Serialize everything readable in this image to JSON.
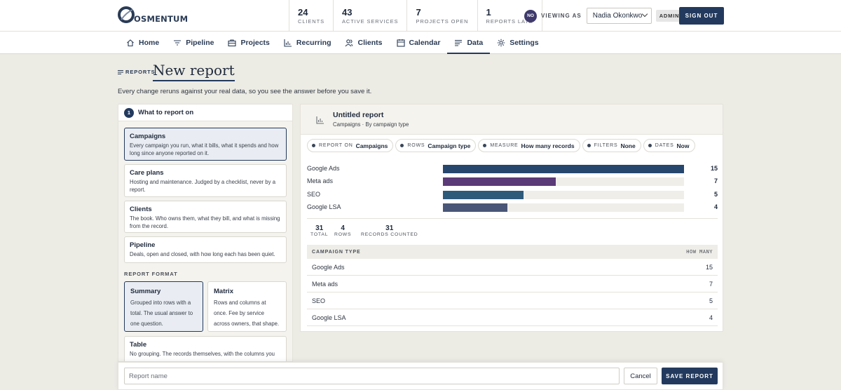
{
  "brand": {
    "name": "OSMENTUM"
  },
  "stats": [
    {
      "num": "24",
      "label": "CLIENTS"
    },
    {
      "num": "43",
      "label": "ACTIVE SERVICES"
    },
    {
      "num": "7",
      "label": "PROJECTS OPEN"
    },
    {
      "num": "1",
      "label": "REPORTS LATE"
    }
  ],
  "viewer": {
    "initials": "NO",
    "label": "VIEWING AS",
    "selected": "Nadia Okonkwo",
    "role_badge": "ADMIN",
    "signout_label": "SIGN OUT"
  },
  "nav": [
    {
      "label": "Home",
      "icon": "home-icon"
    },
    {
      "label": "Pipeline",
      "icon": "filter-icon"
    },
    {
      "label": "Projects",
      "icon": "briefcase-icon"
    },
    {
      "label": "Recurring",
      "icon": "bar-chart-icon"
    },
    {
      "label": "Clients",
      "icon": "users-icon"
    },
    {
      "label": "Calendar",
      "icon": "calendar-icon"
    },
    {
      "label": "Data",
      "icon": "list-icon",
      "active": true
    },
    {
      "label": "Settings",
      "icon": "gear-icon"
    }
  ],
  "page": {
    "breadcrumb": "REPORTS",
    "title": "New report",
    "subtitle": "Every change reruns against your real data, so you see the answer before you save it."
  },
  "builder": {
    "step_number": "1",
    "step_title": "What to report on",
    "sources": [
      {
        "title": "Campaigns",
        "desc": "Every campaign you run, what it bills, what it spends and how long since anyone reported on it.",
        "selected": true
      },
      {
        "title": "Care plans",
        "desc": "Hosting and maintenance. Judged by a checklist, never by a report."
      },
      {
        "title": "Clients",
        "desc": "The book. Who owns them, what they bill, and what is missing from the record."
      },
      {
        "title": "Pipeline",
        "desc": "Deals, open and closed, with how long each has been quiet."
      }
    ],
    "format_label": "REPORT FORMAT",
    "formats": [
      {
        "title": "Summary",
        "desc": "Grouped into rows with a total. The usual answer to one question.",
        "selected": true
      },
      {
        "title": "Matrix",
        "desc": "Rows and columns at once. Fee by service across owners, that shape."
      },
      {
        "title": "Table",
        "desc": "No grouping. The records themselves, with the columns you"
      }
    ]
  },
  "preview": {
    "title": "Untitled report",
    "subtitle": "Campaigns · By campaign type",
    "chips": [
      {
        "key": "REPORT ON",
        "value": "Campaigns"
      },
      {
        "key": "ROWS",
        "value": "Campaign type"
      },
      {
        "key": "MEASURE",
        "value": "How many records"
      },
      {
        "key": "FILTERS",
        "value": "None"
      },
      {
        "key": "DATES",
        "value": "Now"
      }
    ],
    "summary": [
      {
        "num": "31",
        "label": "TOTAL"
      },
      {
        "num": "4",
        "label": "ROWS"
      },
      {
        "num": "31",
        "label": "RECORDS COUNTED"
      }
    ],
    "table": {
      "col_left": "CAMPAIGN TYPE",
      "col_right": "HOW MANY"
    }
  },
  "chart_data": {
    "type": "bar",
    "categories": [
      "Google Ads",
      "Meta ads",
      "SEO",
      "Google LSA"
    ],
    "values": [
      15,
      7,
      5,
      4
    ],
    "colors": [
      "#26466e",
      "#5b3a78",
      "#2e5a7a",
      "#4a5677"
    ],
    "xlim": [
      0,
      15
    ]
  },
  "footer": {
    "name_placeholder": "Report name",
    "cancel_label": "Cancel",
    "save_label": "SAVE REPORT"
  }
}
